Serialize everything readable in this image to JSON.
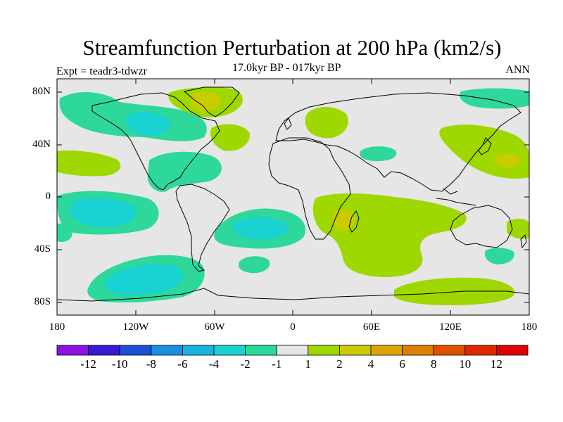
{
  "title": "Streamfunction Perturbation at 200 hPa (km2/s)",
  "left_subtitle": "Expt = teadr3-tdwzr",
  "center_subtitle": "17.0kyr BP - 017kyr BP",
  "right_subtitle": "ANN",
  "chart_data": {
    "type": "filled-contour map",
    "projection": "cylindrical equidistant",
    "x_range": [
      -180,
      180
    ],
    "y_range": [
      -90,
      90
    ],
    "lat_ticks": [
      "80N",
      "40N",
      "0",
      "40S",
      "80S"
    ],
    "lat_values": [
      80,
      40,
      0,
      -40,
      -80
    ],
    "lon_ticks": [
      "180",
      "120W",
      "60W",
      "0",
      "60E",
      "120E",
      "180"
    ],
    "lon_values": [
      -180,
      -120,
      -60,
      0,
      60,
      120,
      180
    ],
    "colorbar": {
      "labels": [
        "-12",
        "-10",
        "-8",
        "-6",
        "-4",
        "-2",
        "-1",
        "1",
        "2",
        "4",
        "6",
        "8",
        "10",
        "12"
      ],
      "colors": [
        "#8c12e0",
        "#3a18d6",
        "#1a4fd6",
        "#1a8ee0",
        "#18b4de",
        "#1ad2d2",
        "#2dd89a",
        "#e6e6e6",
        "#9ed800",
        "#c8cc00",
        "#dca800",
        "#e07e00",
        "#e05000",
        "#e02800",
        "#e00000"
      ]
    },
    "anomaly_regions": [
      {
        "level": "-1",
        "color": "#2dd89a",
        "description": "North Pacific / Canada"
      },
      {
        "level": "-2",
        "color": "#1ad2d2",
        "description": "Central Canada core"
      },
      {
        "level": "-1",
        "color": "#2dd89a",
        "description": "Central America / Caribbean"
      },
      {
        "level": "-1",
        "color": "#2dd89a",
        "description": "Tropical East Pacific"
      },
      {
        "level": "-2",
        "color": "#1ad2d2",
        "description": "Tropical East Pacific core"
      },
      {
        "level": "-1",
        "color": "#2dd89a",
        "description": "South Atlantic"
      },
      {
        "level": "-2",
        "color": "#1ad2d2",
        "description": "South Atlantic core"
      },
      {
        "level": "-1",
        "color": "#2dd89a",
        "description": "South Pacific"
      },
      {
        "level": "-2",
        "color": "#1ad2d2",
        "description": "South Pacific core"
      },
      {
        "level": "1",
        "color": "#9ed800",
        "description": "Greenland"
      },
      {
        "level": "2",
        "color": "#c8cc00",
        "description": "Greenland core"
      },
      {
        "level": "1",
        "color": "#9ed800",
        "description": "Indian Ocean / Southern Africa"
      },
      {
        "level": "2",
        "color": "#c8cc00",
        "description": "Madagascar core"
      },
      {
        "level": "1",
        "color": "#9ed800",
        "description": "Northwest Pacific"
      },
      {
        "level": "2",
        "color": "#c8cc00",
        "description": "Northwest Pacific core"
      },
      {
        "level": "1",
        "color": "#9ed800",
        "description": "Southern Ocean south of Australia"
      }
    ]
  }
}
